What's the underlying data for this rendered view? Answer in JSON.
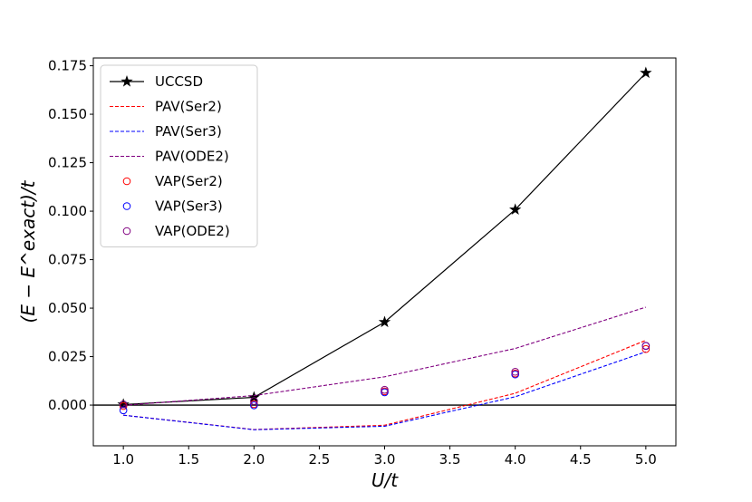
{
  "chart_data": {
    "type": "line",
    "xlabel": "U/t",
    "ylabel": "(E − E^exact)/t",
    "xlim": [
      0.77,
      5.23
    ],
    "ylim": [
      -0.021,
      0.179
    ],
    "xticks": [
      1.0,
      1.5,
      2.0,
      2.5,
      3.0,
      3.5,
      4.0,
      4.5,
      5.0
    ],
    "xtick_labels": [
      "1.0",
      "1.5",
      "2.0",
      "2.5",
      "3.0",
      "3.5",
      "4.0",
      "4.5",
      "5.0"
    ],
    "yticks": [
      0.0,
      0.025,
      0.05,
      0.075,
      0.1,
      0.125,
      0.15,
      0.175
    ],
    "ytick_labels": [
      "0.000",
      "0.025",
      "0.050",
      "0.075",
      "0.100",
      "0.125",
      "0.150",
      "0.175"
    ],
    "reference_line": 0.0,
    "legend_position": "upper-left",
    "series": [
      {
        "name": "UCCSD",
        "style": "line-star",
        "color": "#000000",
        "x": [
          1.0,
          2.0,
          3.0,
          4.0,
          5.0
        ],
        "y": [
          0.0003,
          0.004,
          0.0428,
          0.1008,
          0.1713
        ]
      },
      {
        "name": "PAV(Ser2)",
        "style": "dashed",
        "color": "#ff0000",
        "x": [
          1.0,
          2.0,
          3.0,
          4.0,
          5.0
        ],
        "y": [
          -0.0052,
          -0.0126,
          -0.0104,
          0.0061,
          0.0334
        ]
      },
      {
        "name": "PAV(Ser3)",
        "style": "dashed",
        "color": "#0000ff",
        "x": [
          1.0,
          2.0,
          3.0,
          4.0,
          5.0
        ],
        "y": [
          -0.0052,
          -0.0127,
          -0.0109,
          0.0043,
          0.0275
        ]
      },
      {
        "name": "PAV(ODE2)",
        "style": "dashed",
        "color": "#800080",
        "x": [
          1.0,
          2.0,
          3.0,
          4.0,
          5.0
        ],
        "y": [
          -0.0001,
          0.0049,
          0.0146,
          0.0292,
          0.0505
        ]
      },
      {
        "name": "VAP(Ser2)",
        "style": "circle",
        "color": "#ff0000",
        "x": [
          1.0,
          2.0,
          3.0,
          4.0,
          5.0
        ],
        "y": [
          -0.0005,
          0.0005,
          0.0071,
          0.0163,
          0.0289
        ]
      },
      {
        "name": "VAP(Ser3)",
        "style": "circle",
        "color": "#0000ff",
        "x": [
          1.0,
          2.0,
          3.0,
          4.0,
          5.0
        ],
        "y": [
          -0.0027,
          -0.0001,
          0.0066,
          0.0158,
          0.0305
        ]
      },
      {
        "name": "VAP(ODE2)",
        "style": "circle",
        "color": "#800080",
        "x": [
          1.0,
          2.0,
          3.0,
          4.0,
          5.0
        ],
        "y": [
          0.0004,
          0.0021,
          0.0079,
          0.0172,
          0.0306
        ]
      }
    ]
  }
}
